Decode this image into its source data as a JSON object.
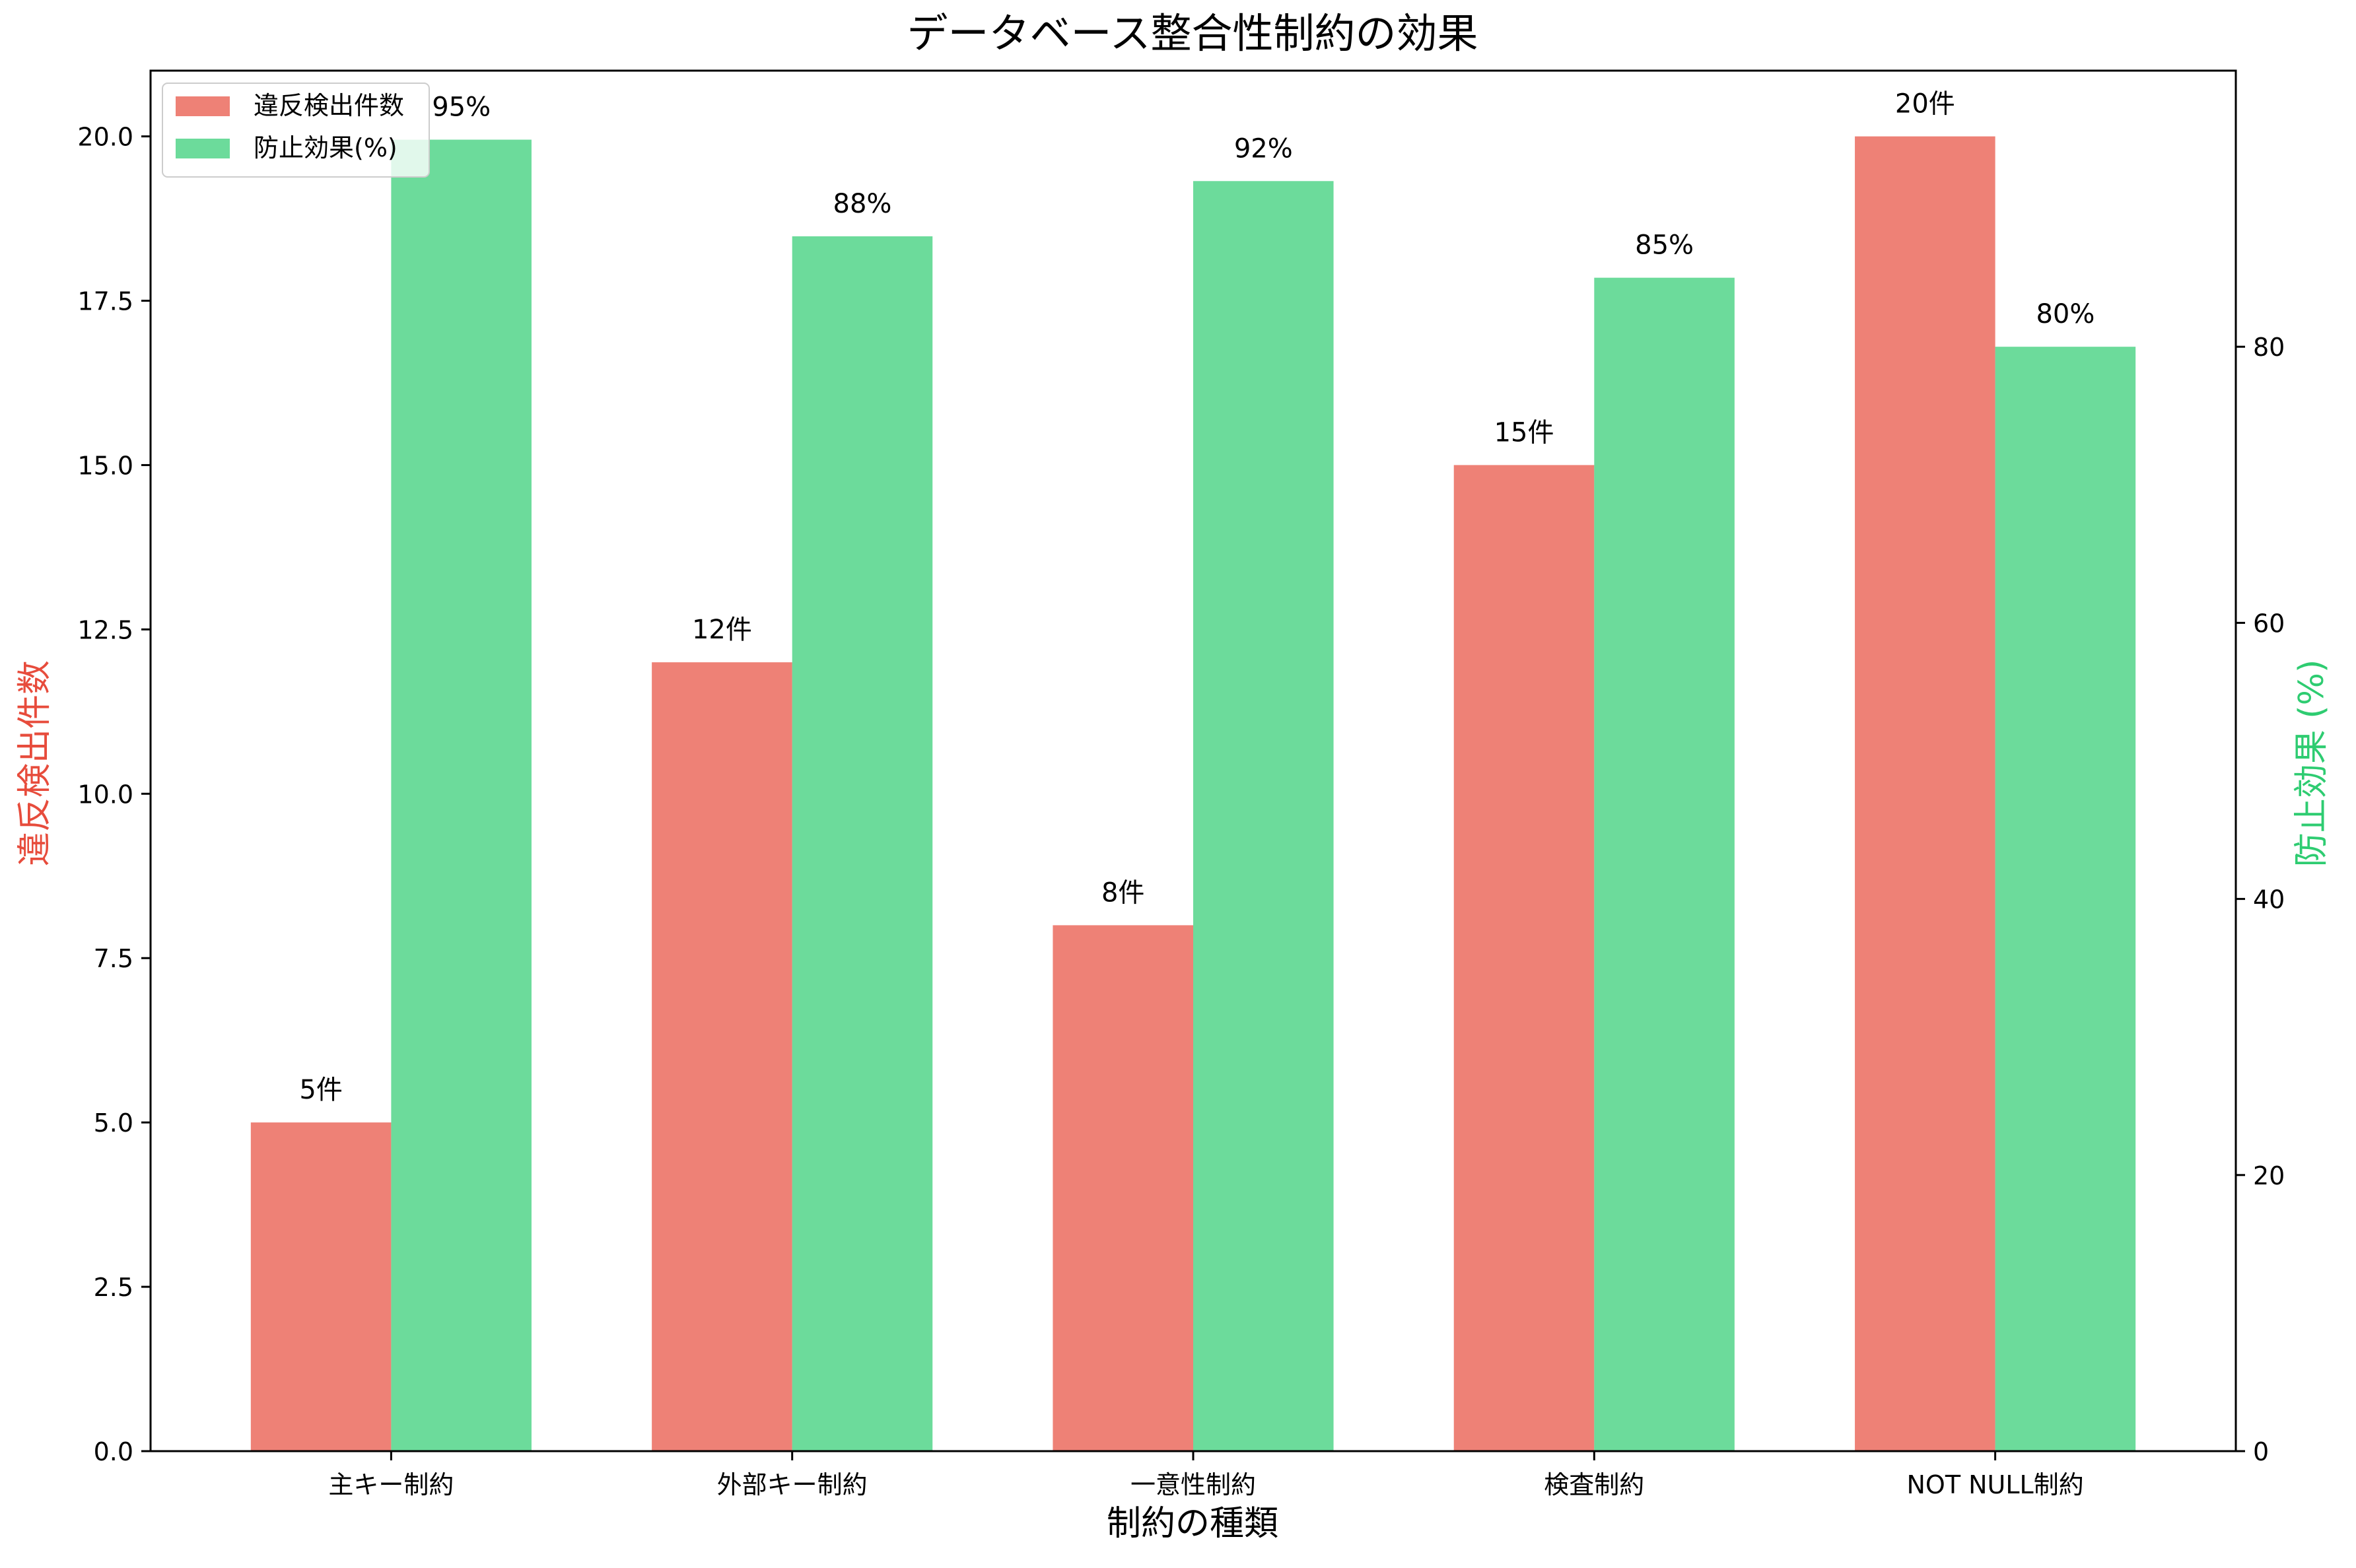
{
  "chart_data": {
    "type": "bar",
    "title": "データベース整合性制約の効果",
    "xlabel": "制約の種類",
    "ylabel_left": "違反検出件数",
    "ylabel_right": "防止効果 (%)",
    "categories": [
      "主キー制約",
      "外部キー制約",
      "一意性制約",
      "検査制約",
      "NOT NULL制約"
    ],
    "ylim_left": [
      0,
      21
    ],
    "ylim_right": [
      0,
      100
    ],
    "yticks_left": [
      "0.0",
      "2.5",
      "5.0",
      "7.5",
      "10.0",
      "12.5",
      "15.0",
      "17.5",
      "20.0"
    ],
    "yticks_right": [
      "0",
      "20",
      "40",
      "60",
      "80"
    ],
    "series": [
      {
        "name": "違反検出件数",
        "axis": "left",
        "color": "#e74c3c",
        "values": [
          5,
          12,
          8,
          15,
          20
        ],
        "labels": [
          "5件",
          "12件",
          "8件",
          "15件",
          "20件"
        ]
      },
      {
        "name": "防止効果(%)",
        "axis": "right",
        "color": "#2ecc71",
        "values": [
          95,
          88,
          92,
          85,
          80
        ],
        "labels": [
          "95%",
          "88%",
          "92%",
          "85%",
          "80%"
        ]
      }
    ],
    "legend_position": "top-left",
    "ylabel_left_color": "#e74c3c",
    "ylabel_right_color": "#2ecc71",
    "grid": false
  }
}
